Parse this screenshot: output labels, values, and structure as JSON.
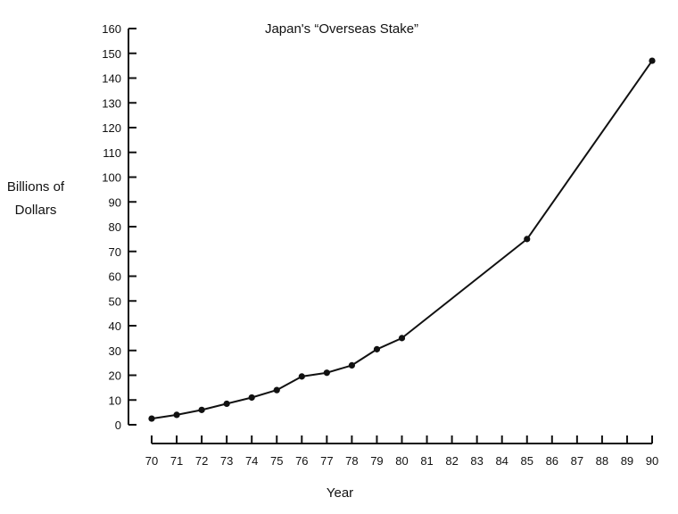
{
  "chart_data": {
    "type": "line",
    "title": "Japan's “Overseas Stake”",
    "xlabel": "Year",
    "ylabel_lines": [
      "Billions of",
      "Dollars"
    ],
    "xlim": [
      70,
      90
    ],
    "ylim": [
      0,
      160
    ],
    "x_ticks": [
      70,
      71,
      72,
      73,
      74,
      75,
      76,
      77,
      78,
      79,
      80,
      81,
      82,
      83,
      84,
      85,
      86,
      87,
      88,
      89,
      90
    ],
    "x_tick_labels": [
      "70",
      "71",
      "72",
      "73",
      "74",
      "75",
      "76",
      "77",
      "78",
      "79",
      "80",
      "81",
      "82",
      "83",
      "84",
      "85",
      "86",
      "87",
      "88",
      "89",
      "90"
    ],
    "y_ticks": [
      0,
      10,
      20,
      30,
      40,
      50,
      60,
      70,
      80,
      90,
      100,
      110,
      120,
      130,
      140,
      150,
      160
    ],
    "y_tick_labels": [
      "0",
      "10",
      "20",
      "30",
      "40",
      "50",
      "60",
      "70",
      "80",
      "90",
      "100",
      "110",
      "120",
      "130",
      "140",
      "150",
      "160"
    ],
    "grid": false,
    "series": [
      {
        "x": [
          70,
          71,
          72,
          73,
          74,
          75,
          76,
          77,
          78,
          79,
          80,
          85,
          90
        ],
        "values": [
          2.5,
          4,
          6,
          8.5,
          11,
          14,
          19.5,
          21,
          24,
          30.5,
          35,
          75,
          147
        ]
      }
    ]
  }
}
